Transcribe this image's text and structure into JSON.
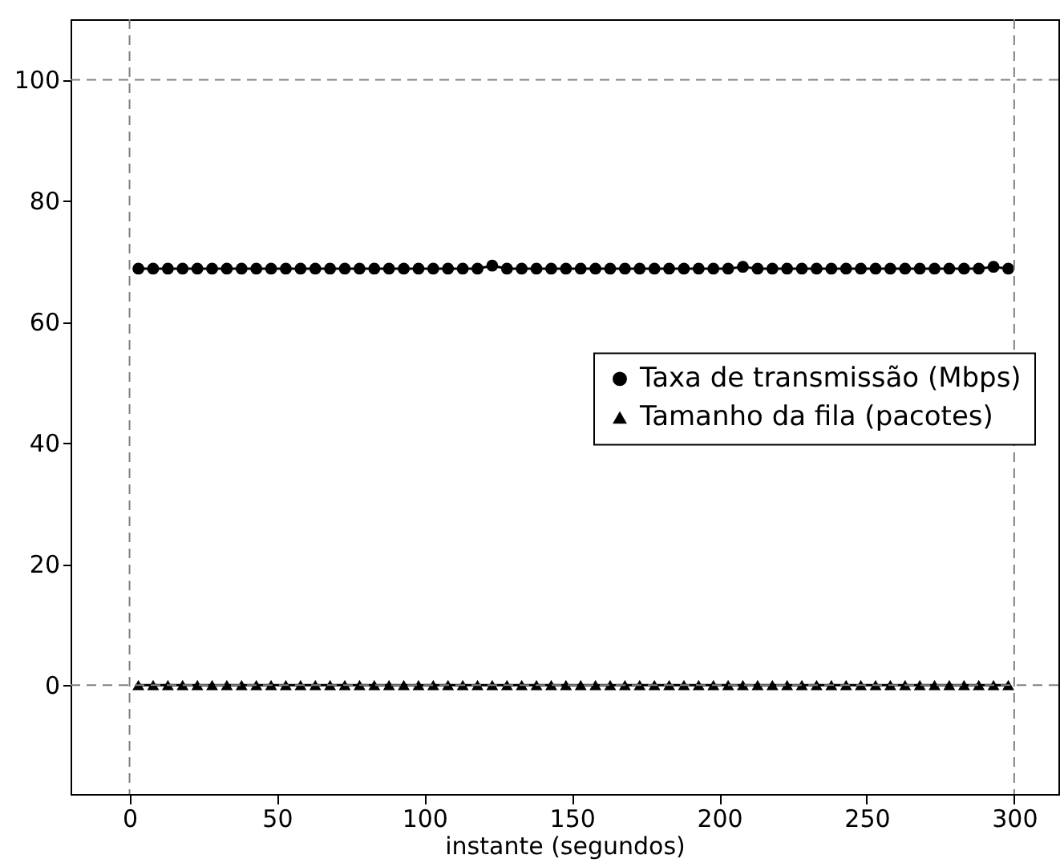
{
  "chart_data": {
    "type": "line",
    "xlabel": "instante (segundos)",
    "x": [
      3,
      8,
      13,
      18,
      23,
      28,
      33,
      38,
      43,
      48,
      53,
      58,
      63,
      68,
      73,
      78,
      83,
      88,
      93,
      98,
      103,
      108,
      113,
      118,
      123,
      128,
      133,
      138,
      143,
      148,
      153,
      158,
      163,
      168,
      173,
      178,
      183,
      188,
      193,
      198,
      203,
      208,
      213,
      218,
      223,
      228,
      233,
      238,
      243,
      248,
      253,
      258,
      263,
      268,
      273,
      278,
      283,
      288,
      293,
      298
    ],
    "series": [
      {
        "name": "Taxa de transmissão (Mbps)",
        "color": "#000000",
        "marker": "circle",
        "values": [
          68.8,
          68.8,
          68.8,
          68.8,
          68.8,
          68.8,
          68.8,
          68.8,
          68.8,
          68.8,
          68.8,
          68.8,
          68.8,
          68.8,
          68.8,
          68.8,
          68.8,
          68.8,
          68.8,
          68.8,
          68.8,
          68.8,
          68.8,
          68.8,
          69.3,
          68.8,
          68.8,
          68.8,
          68.8,
          68.8,
          68.8,
          68.8,
          68.8,
          68.8,
          68.8,
          68.8,
          68.8,
          68.8,
          68.8,
          68.8,
          68.8,
          69.1,
          68.8,
          68.8,
          68.8,
          68.8,
          68.8,
          68.8,
          68.8,
          68.8,
          68.8,
          68.8,
          68.8,
          68.8,
          68.8,
          68.8,
          68.8,
          68.8,
          69.1,
          68.8
        ]
      },
      {
        "name": "Tamanho da fila (pacotes)",
        "color": "#000000",
        "marker": "triangle",
        "values": [
          0,
          0,
          0,
          0,
          0,
          0,
          0,
          0,
          0,
          0,
          0,
          0,
          0,
          0,
          0,
          0,
          0,
          0,
          0,
          0,
          0,
          0,
          0,
          0,
          0,
          0,
          0,
          0,
          0,
          0,
          0,
          0,
          0,
          0,
          0,
          0,
          0,
          0,
          0,
          0,
          0,
          0,
          0,
          0,
          0,
          0,
          0,
          0,
          0,
          0,
          0,
          0,
          0,
          0,
          0,
          0,
          0,
          0,
          0,
          0
        ]
      }
    ],
    "xlim": [
      -20,
      315
    ],
    "xticks": [
      0,
      50,
      100,
      150,
      200,
      250,
      300
    ],
    "ylim": [
      -18,
      110
    ],
    "yticks": [
      0,
      20,
      40,
      60,
      80,
      100
    ],
    "ref_lines": [
      {
        "axis": "x",
        "value": 0,
        "color": "#808080",
        "line_style": "dashed"
      },
      {
        "axis": "x",
        "value": 300,
        "color": "#808080",
        "line_style": "dashed"
      },
      {
        "axis": "y",
        "value": 0,
        "color": "#808080",
        "line_style": "dashed"
      },
      {
        "axis": "y",
        "value": 100,
        "color": "#808080",
        "line_style": "dashed"
      }
    ],
    "legend": "right",
    "grid": false
  }
}
